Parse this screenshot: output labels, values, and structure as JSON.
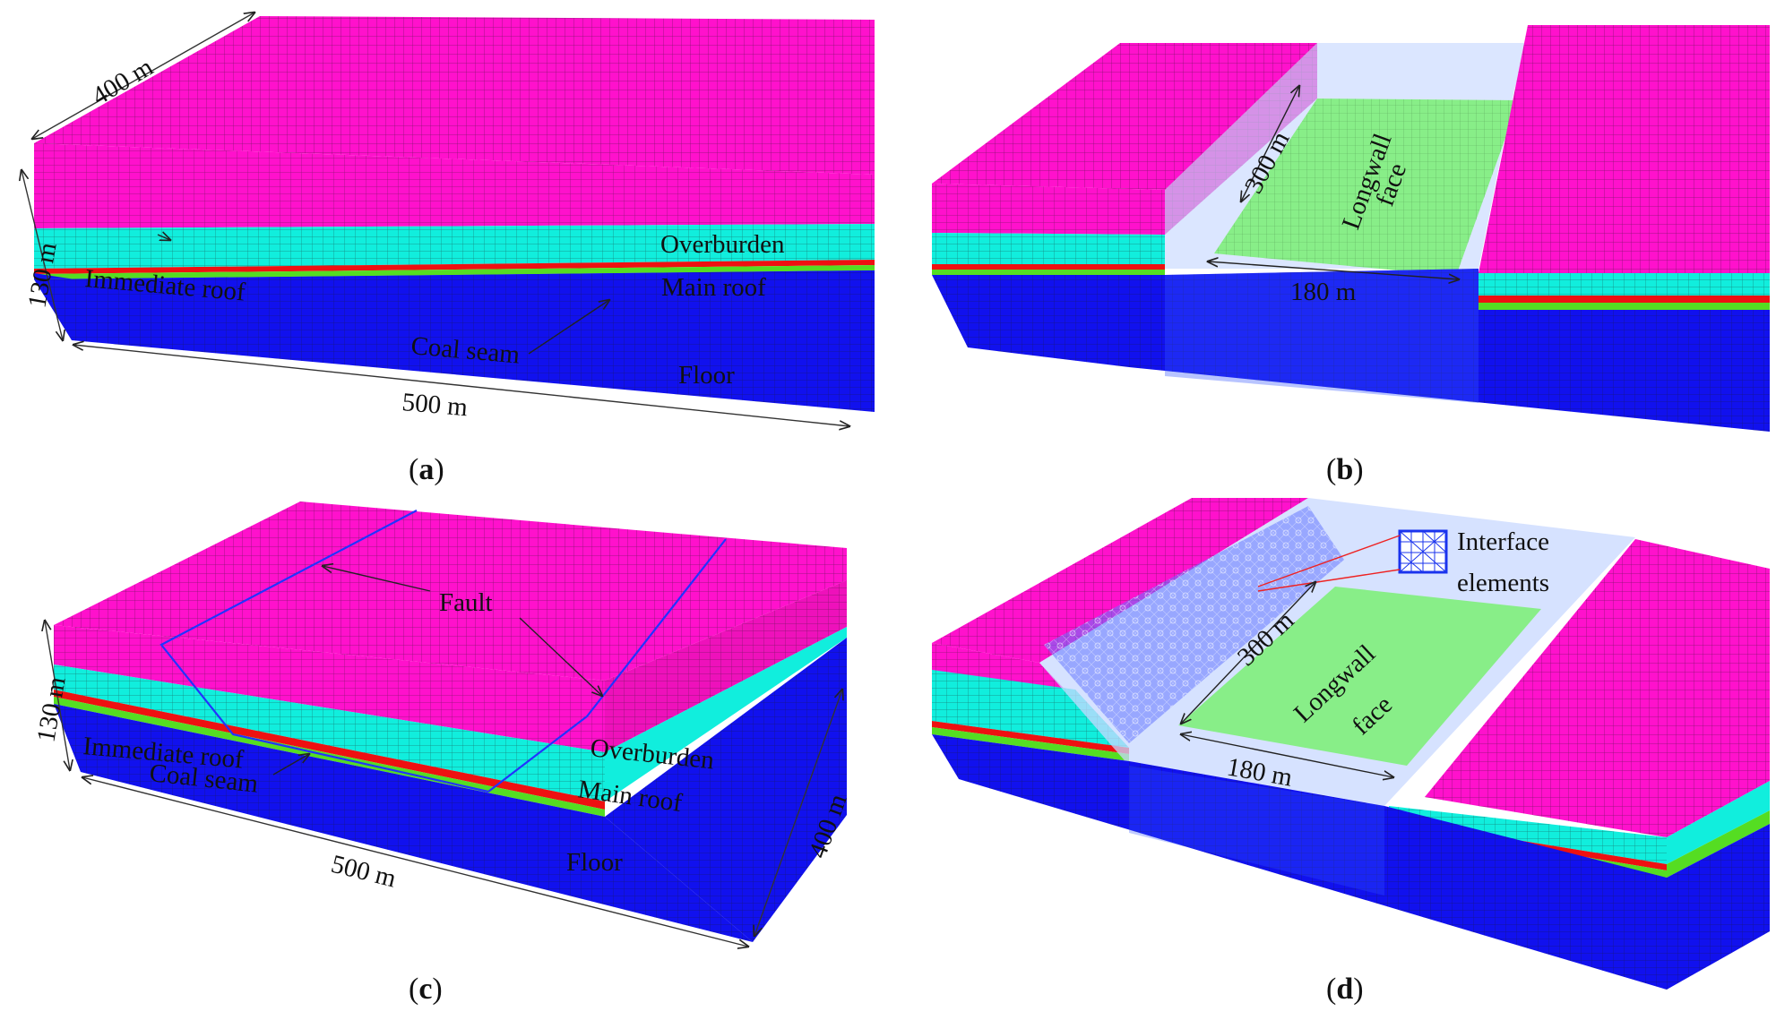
{
  "colors": {
    "overburden": "#ff11cc",
    "main_roof": "#11eedd",
    "immediate_roof": "#55dd22",
    "coal_seam": "#ee1111",
    "floor": "#1111ee",
    "longwall": "#88ee88",
    "mesh_line": "#1a1a1a",
    "fault_line": "#2233ff",
    "transparent_block": "#c8d8ff"
  },
  "panel_a": {
    "caption_open": "(",
    "caption_letter": "a",
    "caption_close": ")",
    "dim_width": "400 m",
    "dim_height": "130 m",
    "dim_length": "500 m",
    "label_overburden": "Overburden",
    "label_main_roof": "Main roof",
    "label_immediate_roof": "Immediate roof",
    "label_coal_seam": "Coal seam",
    "label_floor": "Floor"
  },
  "panel_b": {
    "caption_open": "(",
    "caption_letter": "b",
    "caption_close": ")",
    "dim_panel_length": "300 m",
    "dim_panel_width": "180 m",
    "label_longwall_1": "Longwall",
    "label_longwall_2": "face"
  },
  "panel_c": {
    "caption_open": "(",
    "caption_letter": "c",
    "caption_close": ")",
    "dim_height": "130 m",
    "dim_length": "500 m",
    "dim_width": "400 m",
    "label_fault": "Fault",
    "label_overburden": "Overburden",
    "label_main_roof": "Main roof",
    "label_immediate_roof": "Immediate roof",
    "label_coal_seam": "Coal seam",
    "label_floor": "Floor"
  },
  "panel_d": {
    "caption_open": "(",
    "caption_letter": "d",
    "caption_close": ")",
    "dim_panel_length": "300 m",
    "dim_panel_width": "180 m",
    "label_longwall_1": "Longwall",
    "label_longwall_2": "face",
    "label_interface_1": "Interface",
    "label_interface_2": "elements"
  }
}
